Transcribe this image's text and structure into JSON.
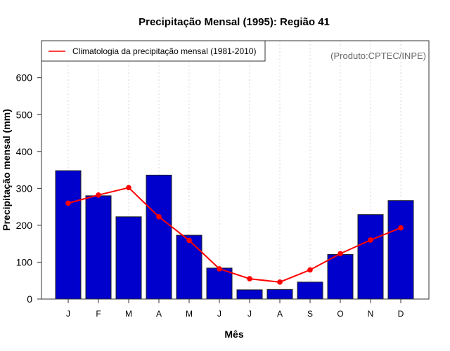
{
  "chart_data": {
    "type": "bar",
    "title": "Precipitação Mensal (1995): Região 41",
    "xlabel": "Mês",
    "ylabel": "Precipitação mensal (mm)",
    "ylim": [
      0,
      660
    ],
    "yticks": [
      0,
      100,
      200,
      300,
      400,
      500,
      600
    ],
    "categories": [
      "J",
      "F",
      "M",
      "A",
      "M",
      "J",
      "J",
      "A",
      "S",
      "O",
      "N",
      "D"
    ],
    "grid": "vertical-dotted",
    "series": [
      {
        "name": "Precipitação mensal (1995)",
        "type": "bar",
        "color": "#0000CC",
        "values": [
          348,
          280,
          223,
          336,
          173,
          84,
          25,
          26,
          46,
          121,
          229,
          267
        ]
      },
      {
        "name": "Climatologia da precipitação mensal (1981-2010)",
        "type": "line",
        "color": "#FF0000",
        "values": [
          260,
          282,
          302,
          223,
          159,
          82,
          55,
          46,
          79,
          123,
          160,
          193
        ]
      }
    ],
    "legend": {
      "placement": "top-left",
      "entries": [
        "Climatologia da precipitação mensal (1981-2010)"
      ]
    },
    "annotation": "(Produto:CPTEC/INPE)"
  }
}
